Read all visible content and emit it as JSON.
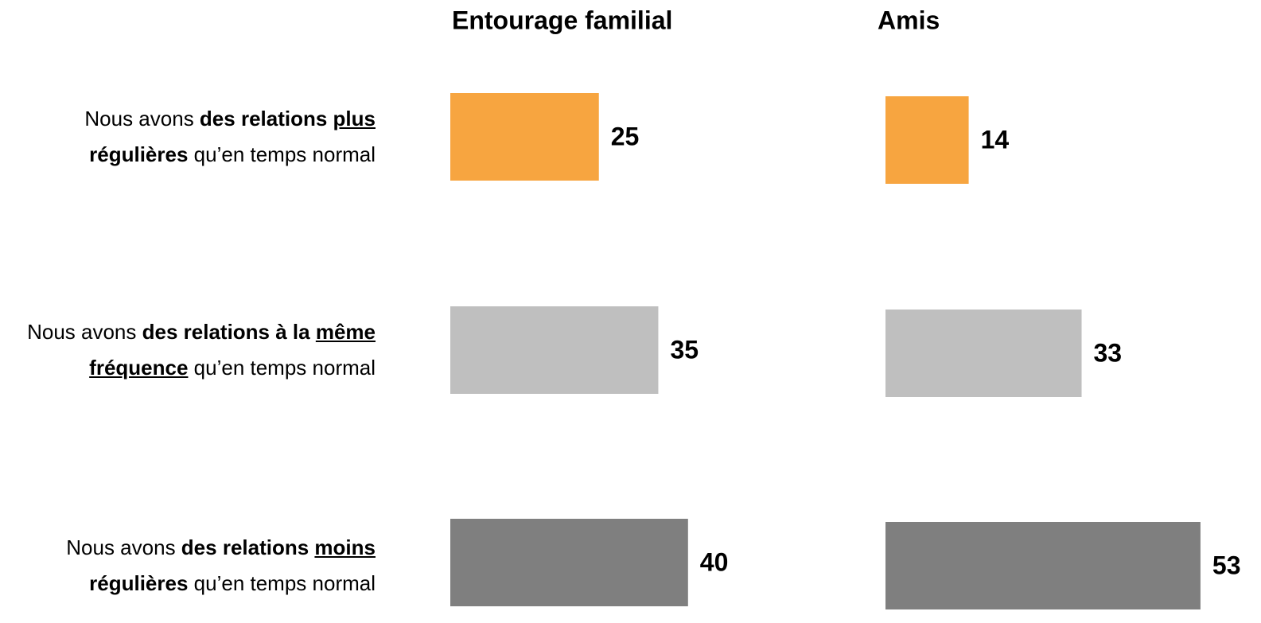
{
  "chart_data": {
    "type": "bar",
    "orientation": "horizontal",
    "categories": [
      [
        {
          "text": "Nous avons ",
          "style": "normal"
        },
        {
          "text": "des relations ",
          "style": "bold"
        },
        {
          "text": "plus",
          "style": "bold-underline"
        },
        {
          "text": " régulières",
          "style": "bold"
        },
        {
          "text": " qu’en temps normal",
          "style": "normal"
        }
      ],
      [
        {
          "text": "Nous avons ",
          "style": "normal"
        },
        {
          "text": "des relations à la ",
          "style": "bold"
        },
        {
          "text": "même fréquence",
          "style": "bold-underline"
        },
        {
          "text": " qu’en temps normal",
          "style": "normal"
        }
      ],
      [
        {
          "text": "Nous avons ",
          "style": "normal"
        },
        {
          "text": "des relations ",
          "style": "bold"
        },
        {
          "text": "moins",
          "style": "bold-underline"
        },
        {
          "text": " régulières",
          "style": "bold"
        },
        {
          "text": " qu’en temps normal",
          "style": "normal"
        }
      ]
    ],
    "colors": [
      "#f7a540",
      "#bfbfbf",
      "#7f7f7f"
    ],
    "series": [
      {
        "name": "Entourage familial",
        "values": [
          25,
          35,
          40
        ]
      },
      {
        "name": "Amis",
        "values": [
          14,
          33,
          53
        ]
      }
    ]
  }
}
